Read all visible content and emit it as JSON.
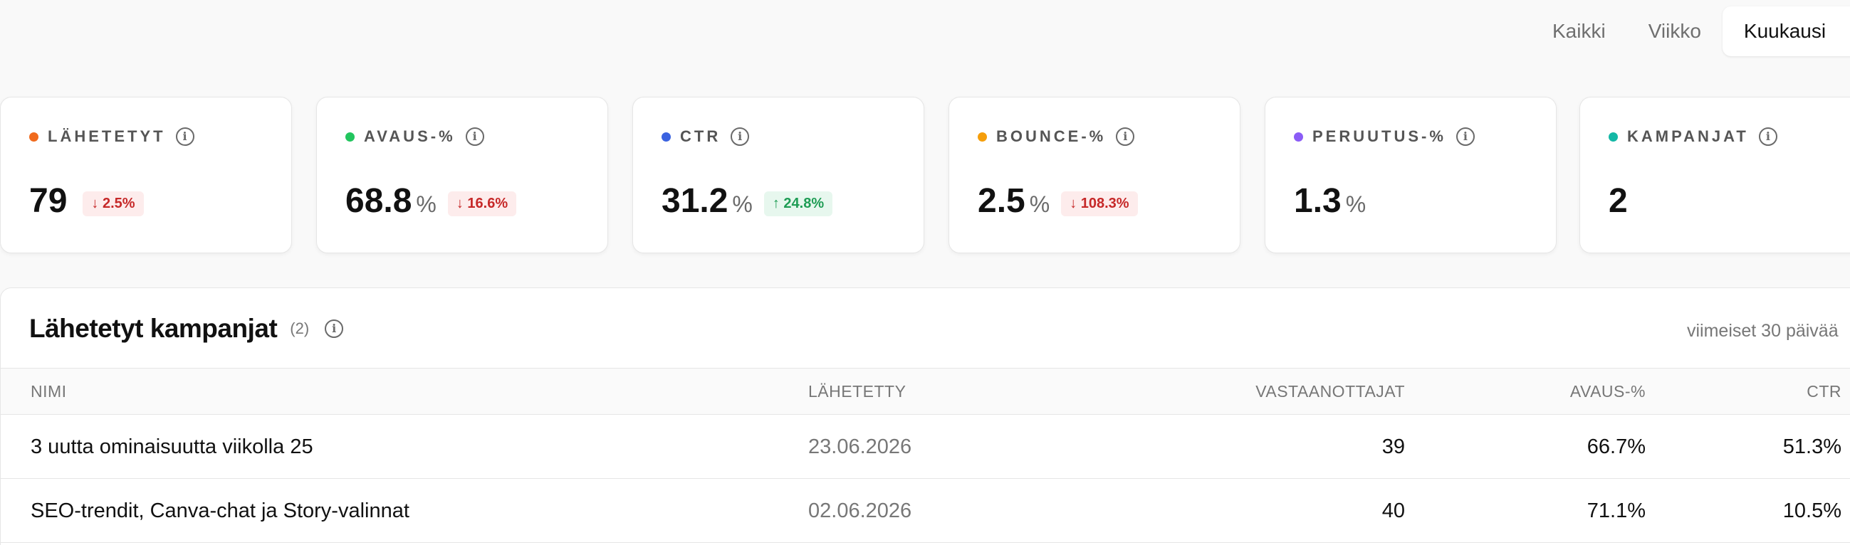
{
  "period_tabs": [
    {
      "label": "Kaikki",
      "active": false
    },
    {
      "label": "Viikko",
      "active": false
    },
    {
      "label": "Kuukausi",
      "active": true
    }
  ],
  "stats": [
    {
      "label": "LÄHETETYT",
      "value": "79",
      "unit": "",
      "change": "↓ 2.5%",
      "trend": "down",
      "color": "#f06a1d"
    },
    {
      "label": "AVAUS-%",
      "value": "68.8",
      "unit": "%",
      "change": "↓ 16.6%",
      "trend": "down",
      "color": "#22c55e"
    },
    {
      "label": "CTR",
      "value": "31.2",
      "unit": "%",
      "change": "↑ 24.8%",
      "trend": "up",
      "color": "#3b63e0"
    },
    {
      "label": "BOUNCE-%",
      "value": "2.5",
      "unit": "%",
      "change": "↓ 108.3%",
      "trend": "down",
      "color": "#f59e0b"
    },
    {
      "label": "PERUUTUS-%",
      "value": "1.3",
      "unit": "%",
      "change": "",
      "trend": "",
      "color": "#8b5cf6"
    },
    {
      "label": "KAMPANJAT",
      "value": "2",
      "unit": "",
      "change": "",
      "trend": "",
      "color": "#14b8a6"
    }
  ],
  "campaigns": {
    "title": "Lähetetyt kampanjat",
    "count": "(2)",
    "range": "viimeiset 30 päivää",
    "columns": {
      "name": "NIMI",
      "sent": "LÄHETETTY",
      "recipients": "VASTAANOTTAJAT",
      "open_rate": "AVAUS-%",
      "ctr": "CTR"
    },
    "rows": [
      {
        "name": "3 uutta ominaisuutta viikolla 25",
        "sent": "23.06.2026",
        "recipients": "39",
        "open_rate": "66.7%",
        "ctr": "51.3%"
      },
      {
        "name": "SEO-trendit, Canva-chat ja Story-valinnat",
        "sent": "02.06.2026",
        "recipients": "40",
        "open_rate": "71.1%",
        "ctr": "10.5%"
      }
    ]
  },
  "icons": {
    "info": "info-icon",
    "trend_down": "arrow-down-icon",
    "trend_up": "arrow-up-icon"
  }
}
